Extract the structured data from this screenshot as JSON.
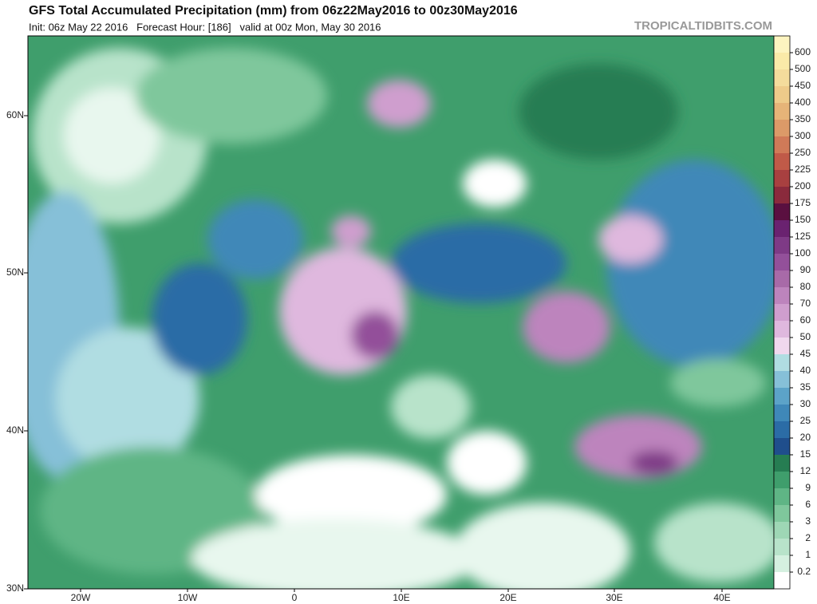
{
  "header": {
    "title": "GFS Total Accumulated Precipitation (mm) from 06z22May2016 to 00z30May2016",
    "subtitle": "Init: 06z May 22 2016   Forecast Hour: [186]   valid at 00z Mon, May 30 2016",
    "brand": "TROPICALTIDBITS.COM"
  },
  "map": {
    "lat_labels": [
      "60N",
      "50N",
      "40N",
      "30N"
    ],
    "lon_labels": [
      "20W",
      "10W",
      "0",
      "10E",
      "20E",
      "30E",
      "40E"
    ]
  },
  "colorbar": {
    "levels": [
      600,
      500,
      450,
      400,
      350,
      300,
      250,
      225,
      200,
      175,
      150,
      125,
      100,
      90,
      80,
      70,
      60,
      50,
      45,
      40,
      35,
      30,
      25,
      20,
      15,
      12,
      9,
      6,
      3,
      2,
      1,
      0.2
    ],
    "colors": [
      "#fdf4c0",
      "#faeaa8",
      "#f4dc9c",
      "#eecb8a",
      "#e6b478",
      "#dc9a68",
      "#d07a58",
      "#c05a48",
      "#a84040",
      "#8a2a3c",
      "#5a1040",
      "#6a2270",
      "#7e3a86",
      "#93509a",
      "#a86aa8",
      "#bd84bd",
      "#cf9ece",
      "#dfb8de",
      "#f0d8ee",
      "#b0dde2",
      "#86c0d8",
      "#5ca3c8",
      "#3f88b8",
      "#2b6ca6",
      "#1f4e8c",
      "#267d52",
      "#3f9e6c",
      "#5fb585",
      "#7fc79c",
      "#9ed7b5",
      "#b8e3ca",
      "#d5f0e0",
      "#ffffff"
    ]
  }
}
